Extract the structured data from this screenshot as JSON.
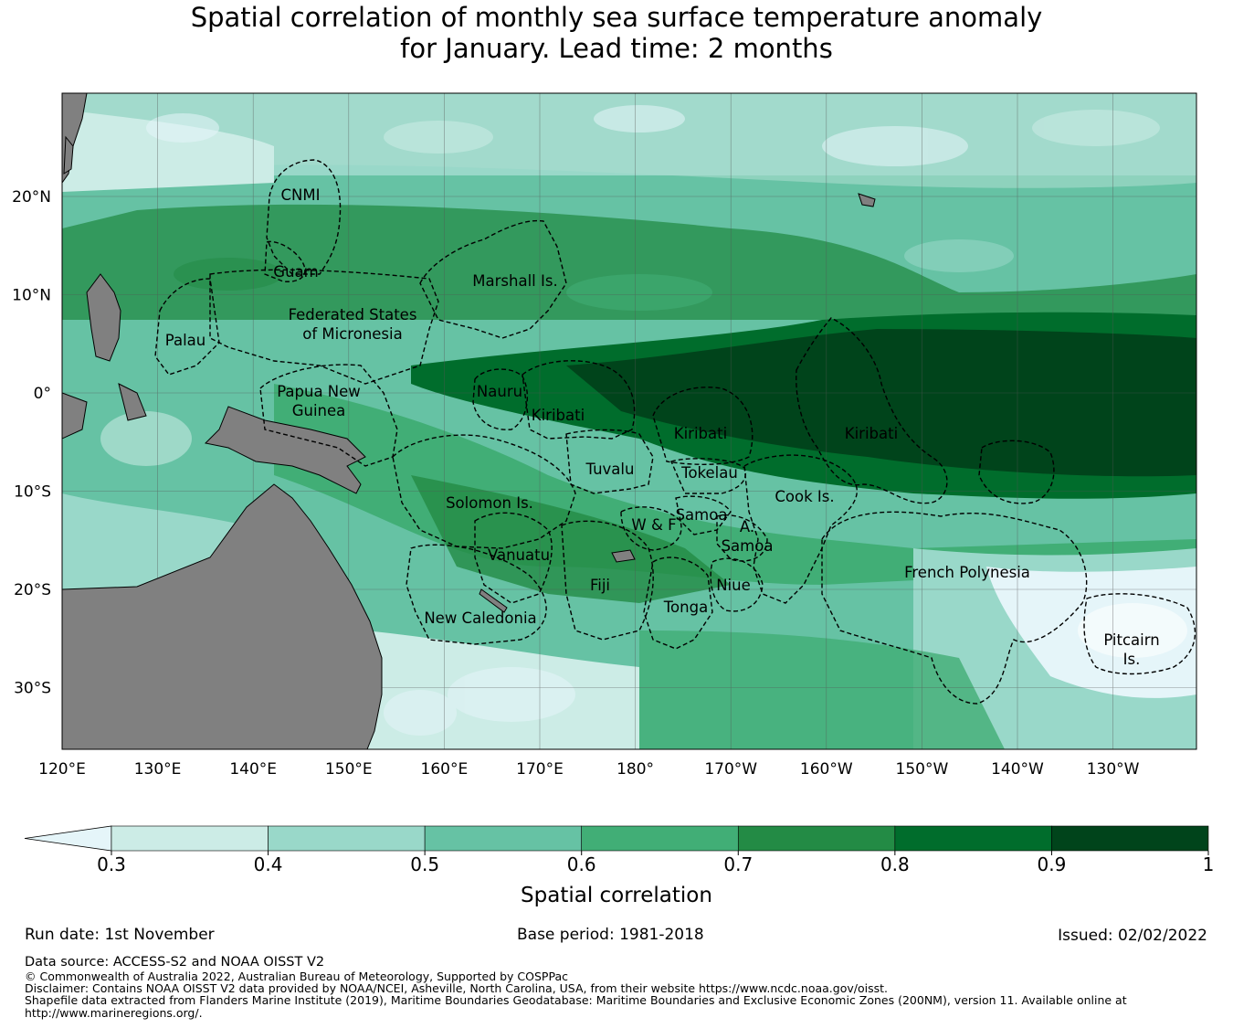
{
  "title_line1": "Spatial correlation of monthly sea surface temperature anomaly",
  "title_line2": "for January. Lead time: 2 months",
  "lon_ticks": [
    "120°E",
    "130°E",
    "140°E",
    "150°E",
    "160°E",
    "170°E",
    "180°",
    "170°W",
    "160°W",
    "150°W",
    "140°W",
    "130°W"
  ],
  "lat_ticks": [
    "20°N",
    "10°N",
    "0°",
    "10°S",
    "20°S",
    "30°S"
  ],
  "regions": {
    "cnmi": "CNMI",
    "guam": "Guam",
    "marshall": "Marshall Is.",
    "fsm1": "Federated States",
    "fsm2": "of Micronesia",
    "palau": "Palau",
    "png1": "Papua New",
    "png2": "Guinea",
    "nauru": "Nauru",
    "kiribati_w": "Kiribati",
    "kiribati_c": "Kiribati",
    "kiribati_e": "Kiribati",
    "tuvalu": "Tuvalu",
    "tokelau": "Tokelau",
    "solomon": "Solomon Is.",
    "samoa": "Samoa",
    "wf": "W & F",
    "asamoa1": "A.",
    "asamoa2": "Samoa",
    "cook": "Cook Is.",
    "vanuatu": "Vanuatu",
    "fiji": "Fiji",
    "niue": "Niue",
    "tonga": "Tonga",
    "french_polynesia": "French Polynesia",
    "new_caledonia": "New Caledonia",
    "pitcairn1": "Pitcairn",
    "pitcairn2": "Is."
  },
  "colorbar": {
    "ticks": [
      "0.3",
      "0.4",
      "0.5",
      "0.6",
      "0.7",
      "0.8",
      "0.9",
      "1"
    ],
    "colors": [
      "#e5f5f9",
      "#ccece6",
      "#99d8c9",
      "#66c2a4",
      "#41ae76",
      "#238b45",
      "#006d2c",
      "#00441b"
    ],
    "label": "Spatial correlation"
  },
  "footer": {
    "run_date": "Run date: 1st November",
    "base_period": "Base period: 1981-2018",
    "issued": "Issued: 02/02/2022",
    "data_source": "Data source: ACCESS-S2 and NOAA OISST V2",
    "copyright": "© Commonwealth of Australia 2022, Australian Bureau of Meteorology, Supported by COSPPac",
    "disclaimer": "Disclaimer: Contains NOAA OISST V2 data provided by NOAA/NCEI, Asheville, North Carolina, USA, from their website https://www.ncdc.noaa.gov/oisst.",
    "shapefile1": "Shapefile data extracted from Flanders Marine Institute (2019), Maritime Boundaries Geodatabase: Maritime Boundaries and Exclusive Economic Zones (200NM), version 11. Available online at",
    "shapefile2": "http://www.marineregions.org/."
  }
}
